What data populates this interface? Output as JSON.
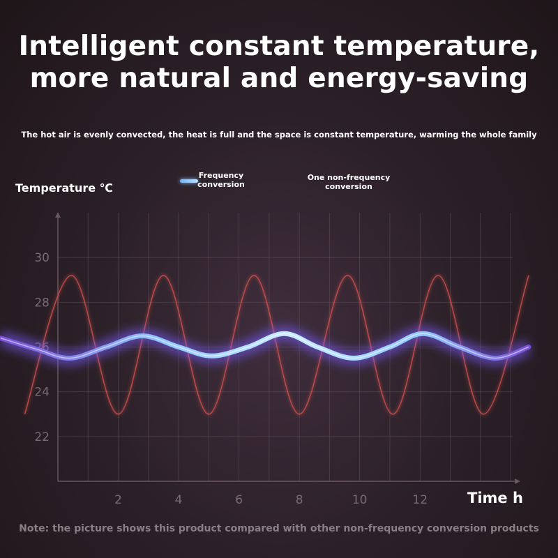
{
  "header": {
    "headline_line1": "Intelligent constant temperature,",
    "headline_line2": "more natural and energy-saving",
    "subtitle": "The hot air is evenly convected, the heat is full and the space is constant temperature, warming the whole family"
  },
  "footer": {
    "note": "Note: the picture shows this product compared with other non-frequency conversion products"
  },
  "colors": {
    "frequency_line": "#a9d7ff",
    "frequency_glow": "#7a5cff",
    "nonfrequency_line": "#d9534f",
    "grid": "#6a5660",
    "tick_label": "#7a6b73"
  },
  "chart_data": {
    "type": "line",
    "xlabel": "Time h",
    "ylabel": "Temperature ℃",
    "x_ticks": [
      2,
      4,
      6,
      8,
      10,
      12
    ],
    "y_ticks": [
      22,
      24,
      26,
      28,
      30
    ],
    "xlim": [
      0,
      15.3
    ],
    "ylim": [
      20,
      32
    ],
    "grid": true,
    "legend_position": "top-center",
    "series": [
      {
        "name": "Frequency\nconversion",
        "x": [
          -1.9,
          -0.7,
          0.4,
          1.6,
          2.8,
          4.0,
          5.1,
          6.3,
          7.5,
          8.6,
          9.8,
          11.0,
          12.1,
          13.3,
          14.5,
          15.6
        ],
        "y": [
          26.4,
          25.9,
          25.5,
          26.0,
          26.5,
          26.0,
          25.6,
          26.0,
          26.6,
          26.0,
          25.5,
          26.0,
          26.6,
          26.0,
          25.5,
          26.0
        ]
      },
      {
        "name": "One non-frequency\nconversion",
        "x": [
          -1.1,
          0.45,
          2.0,
          3.5,
          5.0,
          6.5,
          8.0,
          9.6,
          11.1,
          12.6,
          14.1,
          15.6
        ],
        "y": [
          23.0,
          29.2,
          23.0,
          29.2,
          23.0,
          29.2,
          23.0,
          29.2,
          23.0,
          29.2,
          23.0,
          29.2
        ]
      }
    ]
  }
}
